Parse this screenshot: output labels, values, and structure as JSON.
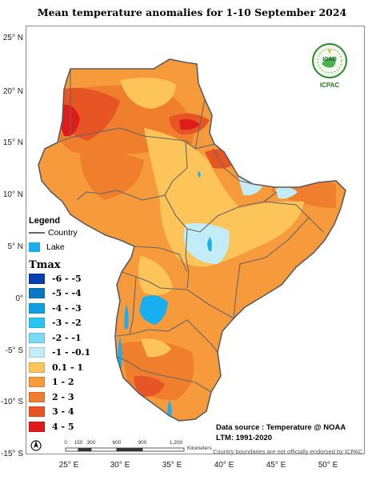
{
  "title": "Mean temperature anomalies for 1-10 September 2024",
  "map": {
    "lat_ticks": [
      "25° N",
      "20° N",
      "15° N",
      "10° N",
      "5° N",
      "0°",
      "-5° S",
      "-10° S",
      "-15° S"
    ],
    "lon_ticks": [
      "25° E",
      "30° E",
      "35° E",
      "40° E",
      "45° E",
      "50° E"
    ]
  },
  "legend": {
    "heading": "Legend",
    "country_label": "Country",
    "lake_label": "Lake",
    "lake_color": "#18aef0",
    "variable": "Tmax",
    "classes": [
      {
        "label": "-6 - -5",
        "color": "#0a3fb0"
      },
      {
        "label": "-5 - -4",
        "color": "#0a79c4"
      },
      {
        "label": "-4 - -3",
        "color": "#12a0e0"
      },
      {
        "label": "-3 - -2",
        "color": "#28c6f2"
      },
      {
        "label": "-2 - -1",
        "color": "#78dbf6"
      },
      {
        "label": "-1 - -0.1",
        "color": "#c2ecf8"
      },
      {
        "label": "0.1 - 1",
        "color": "#fcc459"
      },
      {
        "label": "1 - 2",
        "color": "#f79a3c"
      },
      {
        "label": "2 - 3",
        "color": "#f07f2d"
      },
      {
        "label": "3 - 4",
        "color": "#e85524"
      },
      {
        "label": "4 - 5",
        "color": "#e01b1b"
      }
    ]
  },
  "source_line1": "Data source : Temperature @ NOAA",
  "source_line2": "LTM: 1991-2020",
  "disclaimer": "Country boundaries are not officially endorsed by ICPAC",
  "scale": {
    "ticks": [
      "0",
      "150",
      "300",
      "600",
      "900",
      "1,200"
    ],
    "unit": "Kilometers"
  },
  "logo": {
    "badge": "IGAD",
    "name": "ICPAC"
  }
}
